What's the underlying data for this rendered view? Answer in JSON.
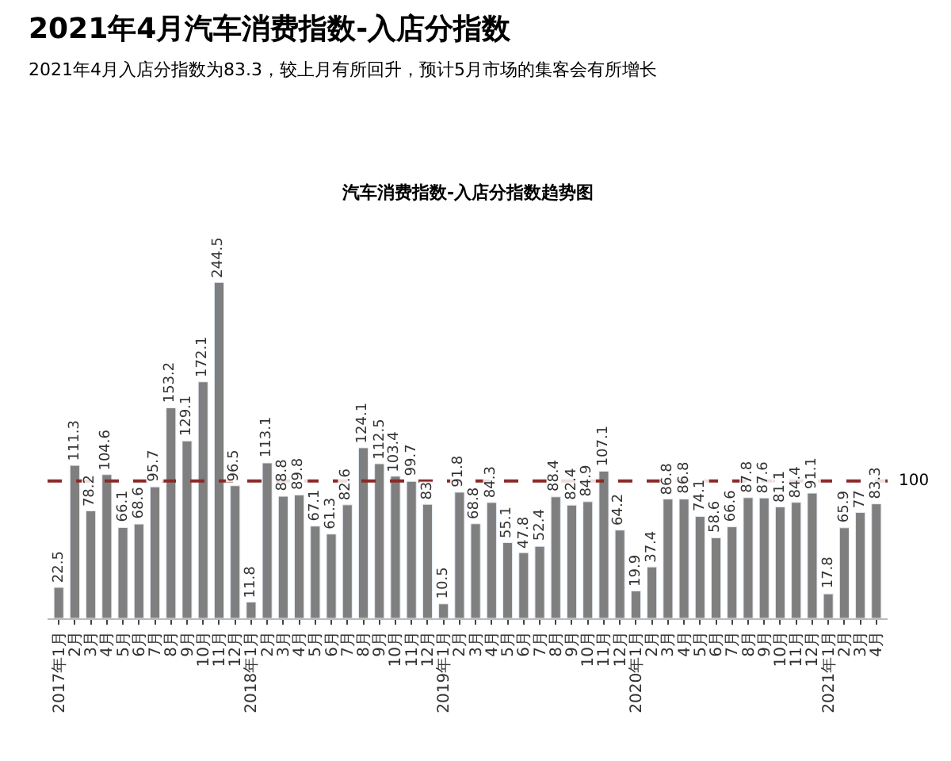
{
  "chart_data": {
    "type": "bar",
    "title": "2021年4月汽车消费指数-入店分指数",
    "subtitle": "2021年4月入店分指数为83.3，较上月有所回升，预计5月市场的集客会有所增长",
    "annotations": [
      "汽车消费指数-入店分指数趋势图"
    ],
    "categories": [
      "2017年1月",
      "2月",
      "3月",
      "4月",
      "5月",
      "6月",
      "7月",
      "8月",
      "9月",
      "10月",
      "11月",
      "12月",
      "2018年1月",
      "2月",
      "3月",
      "4月",
      "5月",
      "6月",
      "7月",
      "8月",
      "9月",
      "10月",
      "11月",
      "12月",
      "2019年1月",
      "2月",
      "3月",
      "4月",
      "5月",
      "6月",
      "7月",
      "8月",
      "9月",
      "10月",
      "11月",
      "12月",
      "2020年1月",
      "2月",
      "3月",
      "4月",
      "5月",
      "6月",
      "7月",
      "8月",
      "9月",
      "10月",
      "11月",
      "12月",
      "2021年1月",
      "2月",
      "3月",
      "4月"
    ],
    "values": [
      22.5,
      111.3,
      78.2,
      104.6,
      66.1,
      68.6,
      95.7,
      153.2,
      129.1,
      172.1,
      244.5,
      96.5,
      11.8,
      113.1,
      88.8,
      89.8,
      67.1,
      61.3,
      82.6,
      124.1,
      112.5,
      103.4,
      99.7,
      83.0,
      10.5,
      91.8,
      68.8,
      84.3,
      55.1,
      47.8,
      52.4,
      88.4,
      82.4,
      84.9,
      107.1,
      64.2,
      19.9,
      37.4,
      86.8,
      86.8,
      74.1,
      58.6,
      66.6,
      87.8,
      87.6,
      81.1,
      84.4,
      91.1,
      17.8,
      65.9,
      77,
      83.3
    ],
    "color": "#7f7f7f",
    "data_labels": true,
    "ref_lines": [
      {
        "axis": "y",
        "value": 100,
        "label": "100",
        "color": "#8b2a2a",
        "line_style": "dashed"
      }
    ]
  }
}
